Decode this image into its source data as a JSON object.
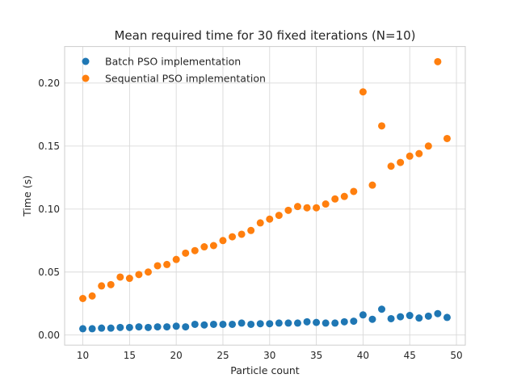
{
  "chart_data": {
    "type": "scatter",
    "title": "Mean required time for 30 fixed iterations (N=10)",
    "xlabel": "Particle count",
    "ylabel": "Time (s)",
    "xlim": [
      8.05,
      50.95
    ],
    "ylim": [
      -0.008,
      0.229
    ],
    "xticks": [
      10,
      15,
      20,
      25,
      30,
      35,
      40,
      45,
      50
    ],
    "yticks": [
      0.0,
      0.05,
      0.1,
      0.15,
      0.2
    ],
    "xtick_labels": [
      "10",
      "15",
      "20",
      "25",
      "30",
      "35",
      "40",
      "45",
      "50"
    ],
    "ytick_labels": [
      "0.00",
      "0.05",
      "0.10",
      "0.15",
      "0.20"
    ],
    "grid": true,
    "legend_position": "top-left",
    "x": [
      10,
      11,
      12,
      13,
      14,
      15,
      16,
      17,
      18,
      19,
      20,
      21,
      22,
      23,
      24,
      25,
      26,
      27,
      28,
      29,
      30,
      31,
      32,
      33,
      34,
      35,
      36,
      37,
      38,
      39,
      40,
      41,
      42,
      43,
      44,
      45,
      46,
      47,
      48,
      49
    ],
    "series": [
      {
        "name": "Batch PSO implementation",
        "color": "#1f77b4",
        "values": [
          0.005,
          0.005,
          0.0055,
          0.0055,
          0.006,
          0.006,
          0.0065,
          0.006,
          0.0065,
          0.0065,
          0.007,
          0.0065,
          0.0085,
          0.008,
          0.0085,
          0.0085,
          0.0085,
          0.0095,
          0.0085,
          0.009,
          0.009,
          0.0095,
          0.0095,
          0.0095,
          0.0105,
          0.01,
          0.0095,
          0.0095,
          0.0105,
          0.011,
          0.016,
          0.0125,
          0.0205,
          0.013,
          0.0145,
          0.0155,
          0.0135,
          0.015,
          0.017,
          0.014
        ]
      },
      {
        "name": "Sequential PSO implementation",
        "color": "#ff7f0e",
        "values": [
          0.029,
          0.031,
          0.039,
          0.04,
          0.046,
          0.045,
          0.048,
          0.05,
          0.055,
          0.056,
          0.06,
          0.065,
          0.067,
          0.07,
          0.071,
          0.075,
          0.078,
          0.08,
          0.083,
          0.089,
          0.092,
          0.095,
          0.099,
          0.102,
          0.101,
          0.101,
          0.104,
          0.108,
          0.11,
          0.114,
          0.193,
          0.119,
          0.166,
          0.134,
          0.137,
          0.142,
          0.144,
          0.15,
          0.217,
          0.156
        ]
      }
    ]
  }
}
